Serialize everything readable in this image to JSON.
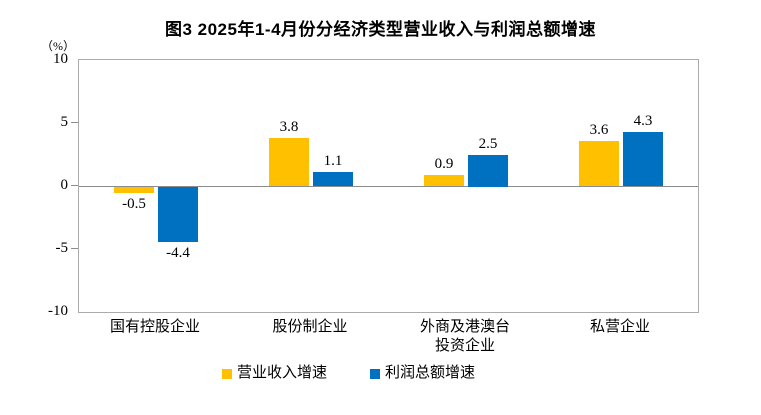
{
  "title": "图3 2025年1-4月份分经济类型营业收入与利润总额增速",
  "unit_label": "（%）",
  "colors": {
    "revenue_series": "#FFC000",
    "profit_series": "#0070C0",
    "plot_border": "#ababab",
    "zero_line": "#8c8c8c",
    "text": "#000000"
  },
  "chart_data": {
    "type": "bar",
    "title": "图3 2025年1-4月份分经济类型营业收入与利润总额增速",
    "ylabel": "（%）",
    "xlabel": "",
    "categories": [
      "国有控股企业",
      "股份制企业",
      "外商及港澳台\n投资企业",
      "私营企业"
    ],
    "series": [
      {
        "name": "营业收入增速",
        "color": "#FFC000",
        "values": [
          -0.5,
          3.8,
          0.9,
          3.6
        ]
      },
      {
        "name": "利润总额增速",
        "color": "#0070C0",
        "values": [
          -4.4,
          1.1,
          2.5,
          4.3
        ]
      }
    ],
    "data_labels": [
      [
        "-0.5",
        "3.8",
        "0.9",
        "3.6"
      ],
      [
        "-4.4",
        "1.1",
        "2.5",
        "4.3"
      ]
    ],
    "ylim": [
      -10,
      10
    ],
    "yticks": [
      10,
      5,
      0,
      -5,
      -10
    ],
    "ytick_labels": [
      "10",
      "5",
      "0",
      "-5",
      "-10"
    ],
    "grid": false,
    "legend_position": "bottom"
  }
}
